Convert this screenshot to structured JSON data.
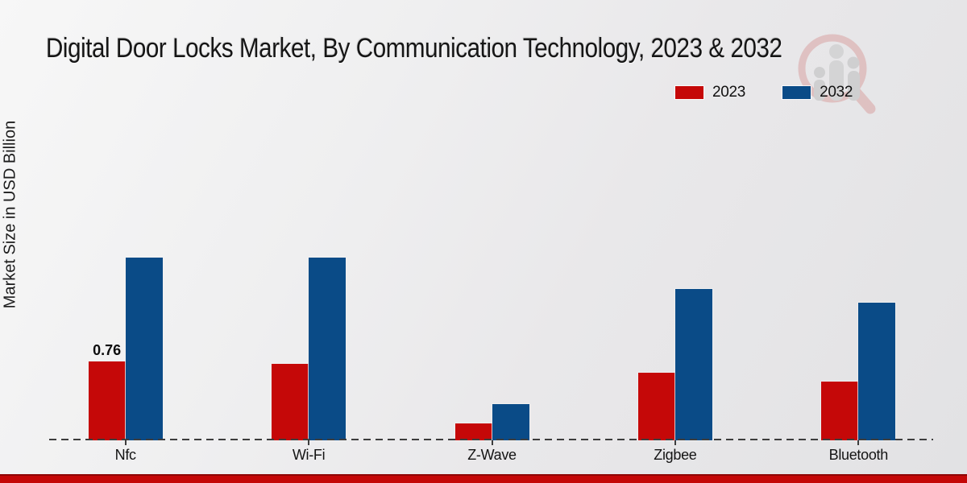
{
  "title": "Digital Door Locks Market, By Communication Technology, 2023 & 2032",
  "ylabel": "Market Size in USD Billion",
  "legend": [
    {
      "label": "2023",
      "color": "#c50808"
    },
    {
      "label": "2032",
      "color": "#0a4b87"
    }
  ],
  "colors": {
    "series_2023": "#c50808",
    "series_2032": "#0a4b87",
    "axis": "#3d3d3d",
    "bottom_strip": "#c40707",
    "text": "#161616"
  },
  "watermark": "market-research-future-logo",
  "chart_data": {
    "type": "bar",
    "title": "Digital Door Locks Market, By Communication Technology, 2023 & 2032",
    "xlabel": "",
    "ylabel": "Market Size in USD Billion",
    "categories": [
      "Nfc",
      "Wi-Fi",
      "Z-Wave",
      "Zigbee",
      "Bluetooth"
    ],
    "series": [
      {
        "name": "2023",
        "color": "#c50808",
        "values": [
          0.76,
          0.73,
          0.16,
          0.65,
          0.56
        ]
      },
      {
        "name": "2032",
        "color": "#0a4b87",
        "values": [
          1.75,
          1.75,
          0.35,
          1.45,
          1.32
        ]
      }
    ],
    "annotations": [
      {
        "category": "Nfc",
        "series": "2023",
        "text": "0.76"
      }
    ],
    "ylim": [
      0,
      2.1
    ],
    "grid": false,
    "legend_position": "top-right",
    "axis_style": "dashed-baseline-only"
  }
}
